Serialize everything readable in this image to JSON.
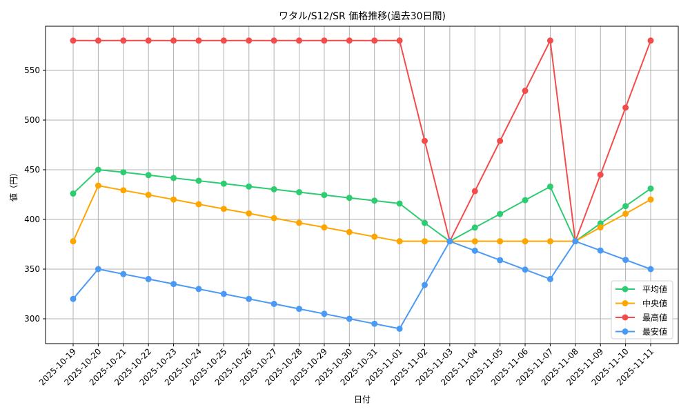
{
  "chart_data": {
    "type": "line",
    "title": "ワタル/S12/SR 価格推移(過去30日間)",
    "xlabel": "日付",
    "ylabel": "値（円）",
    "ylim": [
      275,
      590
    ],
    "yticks": [
      300,
      350,
      400,
      450,
      500,
      550
    ],
    "grid": true,
    "legend_position": "lower right",
    "categories": [
      "2025-10-19",
      "2025-10-20",
      "2025-10-21",
      "2025-10-22",
      "2025-10-23",
      "2025-10-24",
      "2025-10-25",
      "2025-10-26",
      "2025-10-27",
      "2025-10-28",
      "2025-10-29",
      "2025-10-30",
      "2025-10-31",
      "2025-11-01",
      "2025-11-02",
      "2025-11-03",
      "2025-11-04",
      "2025-11-05",
      "2025-11-06",
      "2025-11-07",
      "2025-11-08",
      "2025-11-09",
      "2025-11-10",
      "2025-11-11"
    ],
    "series": [
      {
        "name": "平均値",
        "color": "#2ecc71",
        "values": [
          426,
          450,
          447.5,
          444.6,
          441.7,
          438.9,
          436,
          433.1,
          430.3,
          427.4,
          424.6,
          421.7,
          418.9,
          416,
          396.5,
          378,
          391.8,
          405.5,
          419.4,
          433,
          378,
          396,
          413.4,
          431
        ]
      },
      {
        "name": "中央値",
        "color": "#ffa500",
        "values": [
          378,
          434,
          429.3,
          424.7,
          420,
          415.3,
          410.6,
          406,
          401.3,
          396.6,
          392,
          387.3,
          382.6,
          378,
          378,
          378,
          378,
          378,
          378,
          378,
          378,
          392,
          405.7,
          420
        ]
      },
      {
        "name": "最高値",
        "color": "#f44b4b",
        "values": [
          580,
          580,
          580,
          580,
          580,
          580,
          580,
          580,
          580,
          580,
          580,
          580,
          580,
          580,
          479,
          378,
          428.5,
          479,
          529.5,
          580,
          378,
          445,
          512.5,
          580
        ]
      },
      {
        "name": "最安値",
        "color": "#4a9af5",
        "values": [
          320,
          350,
          345,
          340,
          335,
          330,
          325,
          320,
          315,
          310,
          305,
          300,
          295,
          290,
          334,
          378,
          368.5,
          359,
          349.5,
          340,
          378,
          368.7,
          359.3,
          350
        ]
      }
    ]
  }
}
